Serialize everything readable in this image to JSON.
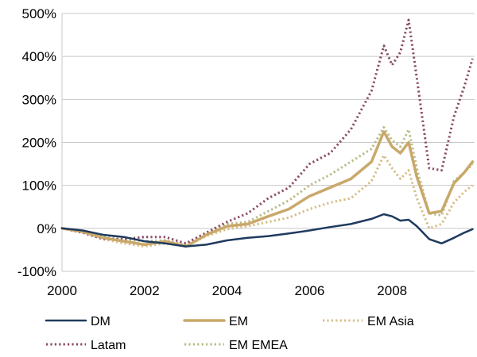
{
  "chart_data": {
    "type": "line",
    "title": "",
    "xlabel": "",
    "ylabel": "",
    "xlim": [
      2000,
      2010
    ],
    "ylim": [
      -100,
      500
    ],
    "grid": true,
    "legend_position": "bottom",
    "y_ticks": [
      {
        "value": -100,
        "label": "-100%"
      },
      {
        "value": 0,
        "label": "0%"
      },
      {
        "value": 100,
        "label": "100%"
      },
      {
        "value": 200,
        "label": "200%"
      },
      {
        "value": 300,
        "label": "300%"
      },
      {
        "value": 400,
        "label": "400%"
      },
      {
        "value": 500,
        "label": "500%"
      }
    ],
    "x_ticks": [
      {
        "value": 2000,
        "label": "2000"
      },
      {
        "value": 2002,
        "label": "2002"
      },
      {
        "value": 2004,
        "label": "2004"
      },
      {
        "value": 2006,
        "label": "2006"
      },
      {
        "value": 2008,
        "label": "2008"
      }
    ],
    "x": [
      2000.0,
      2000.5,
      2001.0,
      2001.5,
      2002.0,
      2002.5,
      2003.0,
      2003.5,
      2004.0,
      2004.5,
      2005.0,
      2005.5,
      2006.0,
      2006.5,
      2007.0,
      2007.5,
      2007.8,
      2008.0,
      2008.2,
      2008.4,
      2008.6,
      2008.9,
      2009.2,
      2009.5,
      2009.75,
      2009.95
    ],
    "series": [
      {
        "name": "DM",
        "color": "#1f3a5f",
        "style": "solid",
        "values": [
          0,
          -5,
          -15,
          -20,
          -30,
          -35,
          -42,
          -38,
          -28,
          -22,
          -18,
          -12,
          -5,
          3,
          10,
          22,
          33,
          28,
          18,
          20,
          5,
          -25,
          -35,
          -22,
          -10,
          -2
        ]
      },
      {
        "name": "EM",
        "color": "#c9a86a",
        "style": "solid-thick",
        "values": [
          0,
          -8,
          -22,
          -30,
          -38,
          -30,
          -42,
          -15,
          5,
          10,
          28,
          45,
          75,
          95,
          115,
          155,
          225,
          190,
          175,
          200,
          120,
          35,
          40,
          105,
          130,
          155
        ]
      },
      {
        "name": "EM Asia",
        "color": "#d6bd86",
        "style": "dotted",
        "values": [
          0,
          -10,
          -25,
          -35,
          -42,
          -35,
          -42,
          -18,
          -2,
          5,
          15,
          25,
          45,
          60,
          70,
          110,
          170,
          140,
          115,
          135,
          70,
          0,
          10,
          60,
          85,
          100
        ]
      },
      {
        "name": "Latam",
        "color": "#8a4b64",
        "style": "dotted",
        "values": [
          0,
          -10,
          -25,
          -25,
          -20,
          -20,
          -35,
          -10,
          15,
          35,
          70,
          95,
          150,
          175,
          230,
          320,
          425,
          380,
          410,
          485,
          350,
          140,
          135,
          260,
          330,
          395
        ]
      },
      {
        "name": "EM EMEA",
        "color": "#b9bb86",
        "style": "dotted",
        "values": [
          0,
          -6,
          -20,
          -25,
          -30,
          -28,
          -38,
          -12,
          10,
          15,
          40,
          65,
          100,
          125,
          155,
          185,
          235,
          205,
          190,
          230,
          140,
          35,
          30,
          110,
          130,
          150
        ]
      }
    ]
  }
}
